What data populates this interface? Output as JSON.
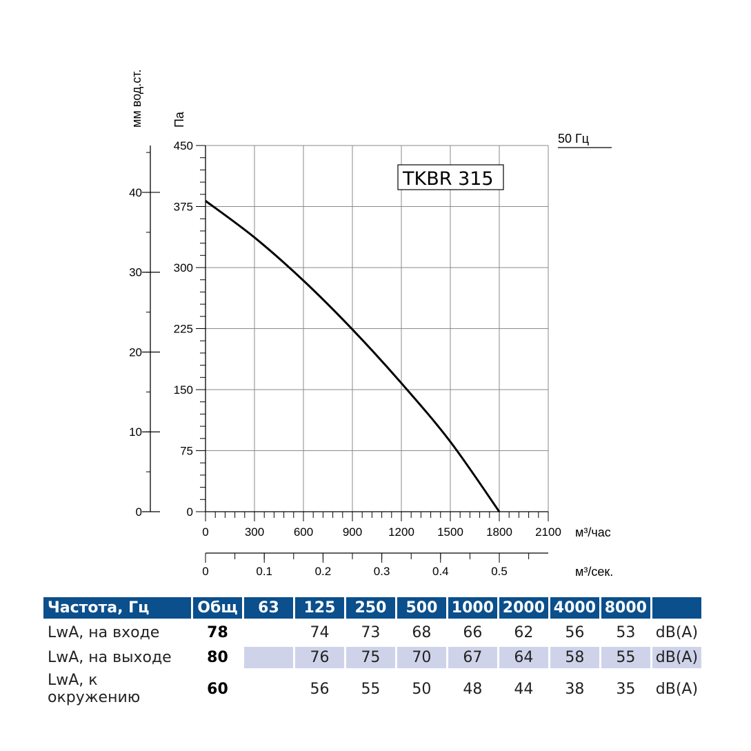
{
  "chart_data": {
    "type": "line",
    "title": "TKBR 315",
    "frequency_label": "50 Гц",
    "series": [
      {
        "name": "TKBR 315",
        "x": [
          0,
          300,
          600,
          900,
          1200,
          1500,
          1800
        ],
        "y": [
          382,
          337,
          284,
          224,
          158,
          86,
          0
        ]
      }
    ],
    "x_axis": {
      "label": "м³/час",
      "ticks": [
        "0",
        "300",
        "600",
        "900",
        "1200",
        "1500",
        "1800",
        "2100"
      ],
      "range": [
        0,
        2100
      ]
    },
    "x2_axis": {
      "label": "м³/сек.",
      "ticks": [
        "0",
        "0.1",
        "0.2",
        "0.3",
        "0.4",
        "0.5"
      ],
      "range": [
        0,
        0.5833
      ]
    },
    "y_axis": {
      "label": "Па",
      "ticks": [
        "0",
        "75",
        "150",
        "225",
        "300",
        "375",
        "450"
      ],
      "range": [
        0,
        450
      ]
    },
    "y2_axis": {
      "label": "мм вод.ст.",
      "ticks": [
        "0",
        "10",
        "20",
        "30",
        "40"
      ],
      "range": [
        0,
        45.87
      ]
    }
  },
  "sound_table": {
    "header": [
      "Частота, Гц",
      "Общ",
      "63",
      "125",
      "250",
      "500",
      "1000",
      "2000",
      "4000",
      "8000",
      ""
    ],
    "rows": [
      {
        "label": "LwA, на входе",
        "total": "78",
        "values": [
          "",
          "74",
          "73",
          "68",
          "66",
          "62",
          "56",
          "53"
        ],
        "unit": "dB(A)"
      },
      {
        "label": "LwA, на выходе",
        "total": "80",
        "values": [
          "",
          "76",
          "75",
          "70",
          "67",
          "64",
          "58",
          "55"
        ],
        "unit": "dB(A)"
      },
      {
        "label": "LwA, к окружению",
        "total": "60",
        "values": [
          "",
          "56",
          "55",
          "50",
          "48",
          "44",
          "38",
          "35"
        ],
        "unit": "dB(A)"
      }
    ]
  }
}
